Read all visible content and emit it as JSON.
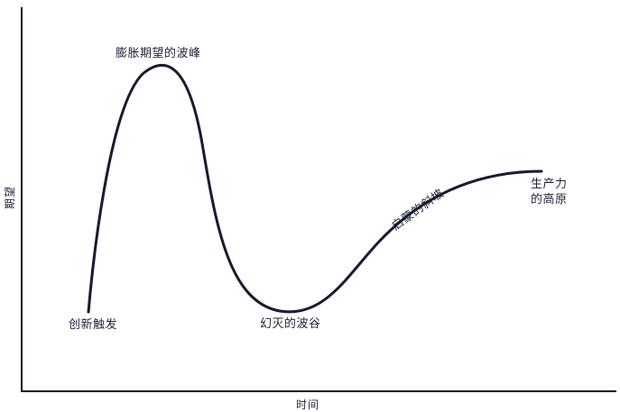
{
  "axes": {
    "x_label": "时间",
    "y_label": "期望"
  },
  "phases": {
    "trigger": "创新触发",
    "peak": "膨胀期望的波峰",
    "trough": "幻灭的波谷",
    "slope": "启蒙的斜坡",
    "plateau_line1": "生产力",
    "plateau_line2": "的高原"
  },
  "colors": {
    "curve": "#15182e",
    "axis": "#15182e",
    "text": "#1b1f33"
  }
}
